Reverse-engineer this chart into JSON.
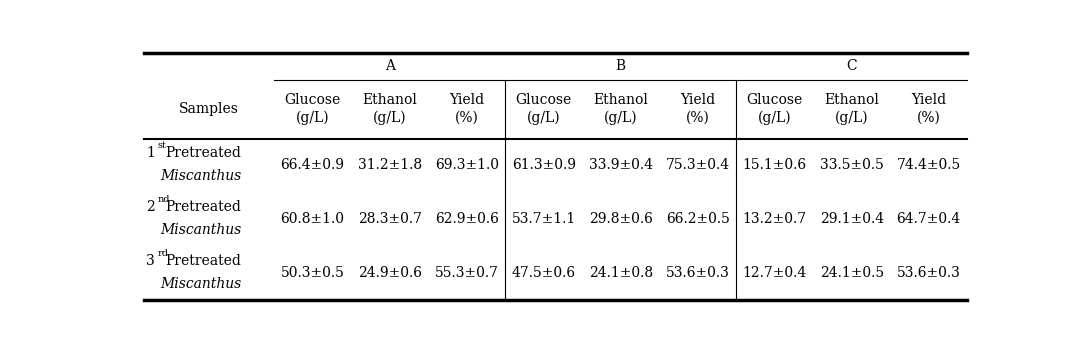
{
  "col_groups": [
    "A",
    "B",
    "C"
  ],
  "sub_headers": [
    "Glucose\n(g/L)",
    "Ethanol\n(g/L)",
    "Yield\n(%)",
    "Glucose\n(g/L)",
    "Ethanol\n(g/L)",
    "Yield\n(%)",
    "Glucose\n(g/L)",
    "Ethanol\n(g/L)",
    "Yield\n(%)"
  ],
  "row_label_nums": [
    "1",
    "2",
    "3"
  ],
  "row_label_sups": [
    "st",
    "nd",
    "rd"
  ],
  "rows": [
    [
      "66.4±0.9",
      "31.2±1.8",
      "69.3±1.0",
      "61.3±0.9",
      "33.9±0.4",
      "75.3±0.4",
      "15.1±0.6",
      "33.5±0.5",
      "74.4±0.5"
    ],
    [
      "60.8±1.0",
      "28.3±0.7",
      "62.9±0.6",
      "53.7±1.1",
      "29.8±0.6",
      "66.2±0.5",
      "13.2±0.7",
      "29.1±0.4",
      "64.7±0.4"
    ],
    [
      "50.3±0.5",
      "24.9±0.6",
      "55.3±0.7",
      "47.5±0.6",
      "24.1±0.8",
      "53.6±0.3",
      "12.7±0.4",
      "24.1±0.5",
      "53.6±0.3"
    ]
  ],
  "bg_color": "#ffffff",
  "text_color": "#000000",
  "line_color": "#000000",
  "font_size": 10,
  "header_font_size": 10
}
